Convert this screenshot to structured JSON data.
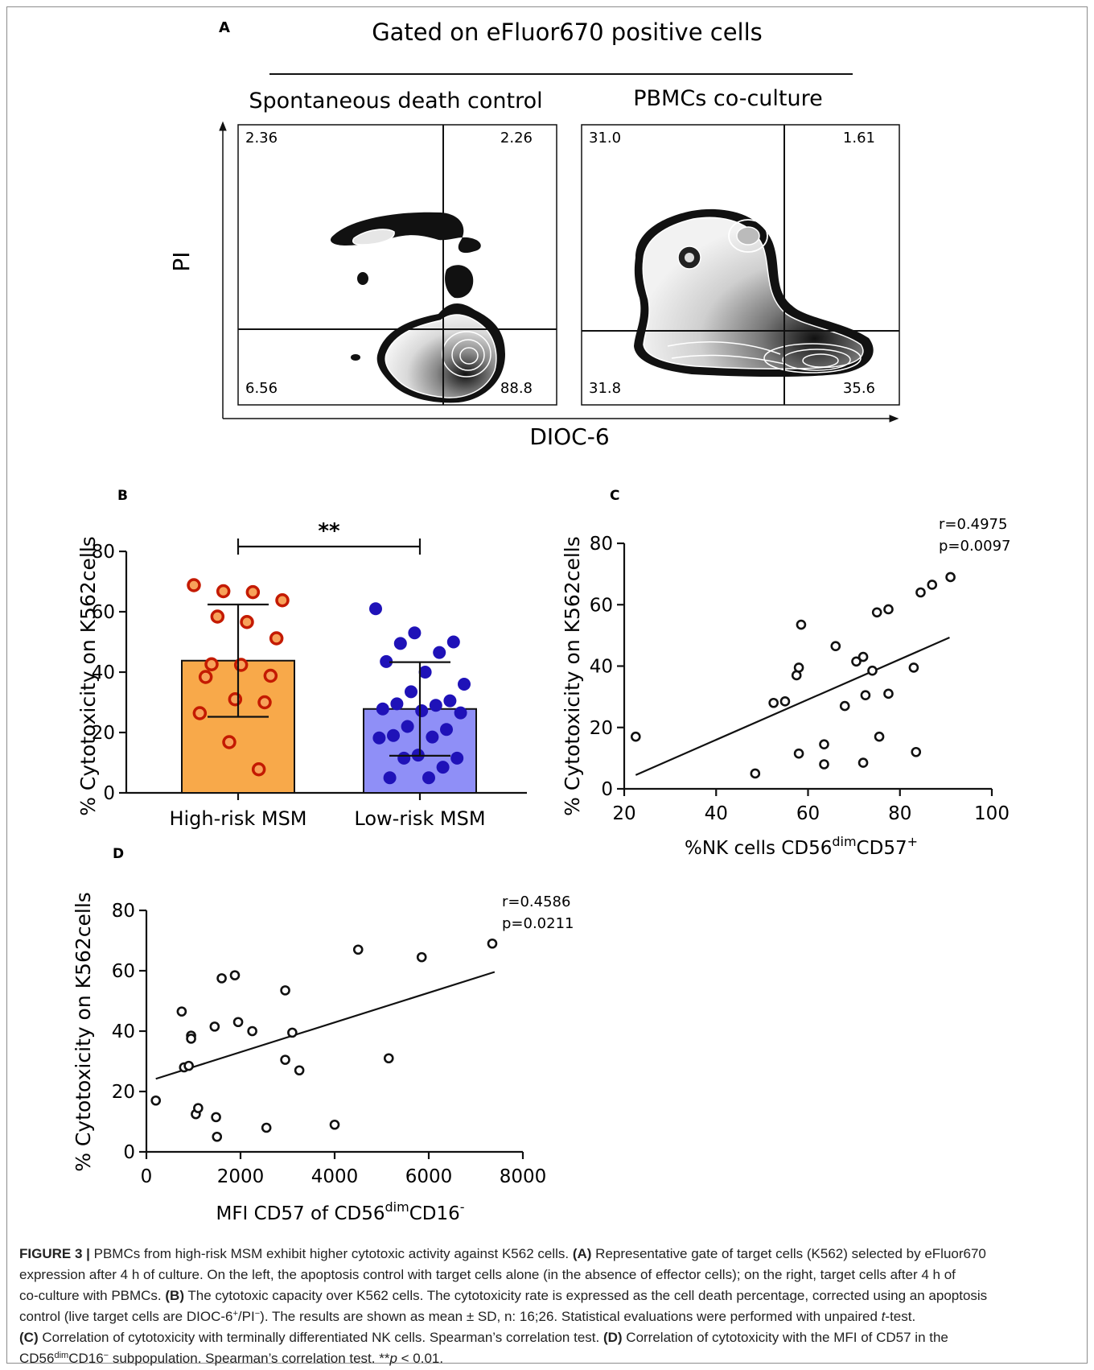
{
  "panel_letters": {
    "A": "A",
    "B": "B",
    "C": "C",
    "D": "D"
  },
  "panel_a": {
    "title": "Gated on eFluor670 positive cells",
    "left_plot": {
      "subtitle": "Spontaneous death  control",
      "quadrants": {
        "upper_left": "2.36",
        "upper_right": "2.26",
        "lower_left": "6.56",
        "lower_right": "88.8"
      }
    },
    "right_plot": {
      "subtitle": "PBMCs co-culture",
      "quadrants": {
        "upper_left": "31.0",
        "upper_right": "1.61",
        "lower_left": "31.8",
        "lower_right": "35.6"
      }
    },
    "xlabel": "DIOC-6",
    "ylabel": "PI"
  },
  "chart_data": [
    {
      "panel": "B",
      "type": "bar",
      "categories": [
        "High-risk MSM",
        "Low-risk MSM"
      ],
      "values": [
        43.8,
        27.8
      ],
      "sd": [
        18.6,
        15.5
      ],
      "colors": [
        "#F8A94A",
        "#8F8FF7"
      ],
      "point_colors": [
        "#C41A00",
        "#1F12B8"
      ],
      "points": [
        [
          68.8,
          66.8,
          66.5,
          63.8,
          58.4,
          56.6,
          51.2,
          42.6,
          42.4,
          38.8,
          38.4,
          31.0,
          30.0,
          26.4,
          16.8,
          7.8
        ],
        [
          61.0,
          53.0,
          50.0,
          49.5,
          46.5,
          43.5,
          40.0,
          36.0,
          33.5,
          30.5,
          29.5,
          29.0,
          27.8,
          27.2,
          26.5,
          22.0,
          21.0,
          19.0,
          18.5,
          18.2,
          12.5,
          11.5,
          11.5,
          8.5,
          5.0,
          5.0
        ]
      ],
      "significance": "**",
      "xlabel": "",
      "ylabel": "% Cytotoxicity on K562cells",
      "yticks": [
        "0",
        "20",
        "40",
        "60",
        "80"
      ],
      "ylim": [
        0,
        80
      ]
    },
    {
      "panel": "C",
      "type": "scatter",
      "xlabel_main": "%NK cells CD56",
      "xlabel_sup1": "dim",
      "xlabel_mid": "CD57",
      "xlabel_sup2": "+",
      "ylabel": "% Cytotoxicity on K562cells",
      "xticks": [
        "20",
        "40",
        "60",
        "80",
        "100"
      ],
      "yticks": [
        "0",
        "20",
        "40",
        "60",
        "80"
      ],
      "xlim": [
        20,
        100
      ],
      "ylim": [
        0,
        80
      ],
      "annotation": [
        "r=0.4975",
        "p=0.0097"
      ],
      "fit_line": [
        [
          22.5,
          4.5
        ],
        [
          90.8,
          49.3
        ]
      ],
      "points": [
        [
          22.5,
          17.0
        ],
        [
          48.5,
          5.0
        ],
        [
          52.5,
          28.0
        ],
        [
          55.0,
          28.5
        ],
        [
          57.5,
          37.0
        ],
        [
          58.0,
          39.5
        ],
        [
          58.5,
          53.5
        ],
        [
          58.0,
          11.5
        ],
        [
          63.5,
          14.5
        ],
        [
          63.5,
          8.0
        ],
        [
          66.0,
          46.5
        ],
        [
          68.0,
          27.0
        ],
        [
          70.5,
          41.5
        ],
        [
          72.0,
          43.0
        ],
        [
          72.0,
          8.5
        ],
        [
          72.5,
          30.5
        ],
        [
          74.0,
          38.5
        ],
        [
          75.0,
          57.5
        ],
        [
          75.5,
          17.0
        ],
        [
          77.5,
          58.5
        ],
        [
          77.5,
          31.0
        ],
        [
          83.0,
          39.5
        ],
        [
          83.5,
          12.0
        ],
        [
          84.5,
          64.0
        ],
        [
          87.0,
          66.5
        ],
        [
          91.0,
          69.0
        ]
      ]
    },
    {
      "panel": "D",
      "type": "scatter",
      "xlabel_main": "MFI CD57 of CD56",
      "xlabel_sup1": "dim",
      "xlabel_mid": "CD16",
      "xlabel_sup2": "-",
      "ylabel": "% Cytotoxicity on K562cells",
      "xticks": [
        "0",
        "2000",
        "4000",
        "6000",
        "8000"
      ],
      "yticks": [
        "0",
        "20",
        "40",
        "60",
        "80"
      ],
      "xlim": [
        0,
        8000
      ],
      "ylim": [
        0,
        80
      ],
      "annotation": [
        "r=0.4586",
        "p=0.0211"
      ],
      "fit_line": [
        [
          200,
          24.2
        ],
        [
          7400,
          59.6
        ]
      ],
      "points": [
        [
          200,
          17.0
        ],
        [
          750,
          46.5
        ],
        [
          800,
          28.0
        ],
        [
          900,
          28.5
        ],
        [
          950,
          38.5
        ],
        [
          950,
          37.5
        ],
        [
          1050,
          12.5
        ],
        [
          1100,
          14.5
        ],
        [
          1450,
          41.5
        ],
        [
          1480,
          11.5
        ],
        [
          1500,
          5.0
        ],
        [
          1600,
          57.5
        ],
        [
          1880,
          58.5
        ],
        [
          1950,
          43.0
        ],
        [
          2250,
          40.0
        ],
        [
          2550,
          8.0
        ],
        [
          2950,
          53.5
        ],
        [
          2950,
          30.5
        ],
        [
          3100,
          39.5
        ],
        [
          3250,
          27.0
        ],
        [
          4000,
          9.0
        ],
        [
          4500,
          67.0
        ],
        [
          5150,
          31.0
        ],
        [
          5850,
          64.5
        ],
        [
          7350,
          69.0
        ]
      ]
    }
  ],
  "caption": {
    "fig_label": "FIGURE 3 |",
    "seg1": " PBMCs from high-risk MSM exhibit higher cytotoxic activity against K562 cells. ",
    "seg2": "(A)",
    "seg3": " Representative gate of target cells (K562) selected by eFluor670",
    "line2": "expression after 4 h of culture. On the left, the apoptosis control with target cells alone (in the absence of effector cells); on the right, target cells after 4 h of",
    "line3": "co-culture with PBMCs. ",
    "seg4": "(B)",
    "seg5": " The cytotoxic capacity over K562 cells. The cytotoxicity rate is expressed as the cell death percentage, corrected using an apoptosis",
    "line4a": "control (live target cells are DIOC-6",
    "line4b": "+",
    "line4c": "/PI",
    "line4d": "−",
    "line4e": "). The results are shown as mean ± SD, n: 16;26. Statistical evaluations were performed with unpaired ",
    "line4f": "t",
    "line4g": "-test.",
    "seg6": "(C)",
    "seg7": " Correlation of cytotoxicity with terminally differentiated NK cells. Spearman’s correlation test. ",
    "seg8": "(D)",
    "seg9": " Correlation of cytotoxicity with the MFI of CD57 in the",
    "line6a": "CD56",
    "line6b": "dim",
    "line6c": "CD16",
    "line6d": "−",
    "line6e": " subpopulation. Spearman’s correlation test. **",
    "line6f": "p",
    "line6g": " < 0.01."
  }
}
